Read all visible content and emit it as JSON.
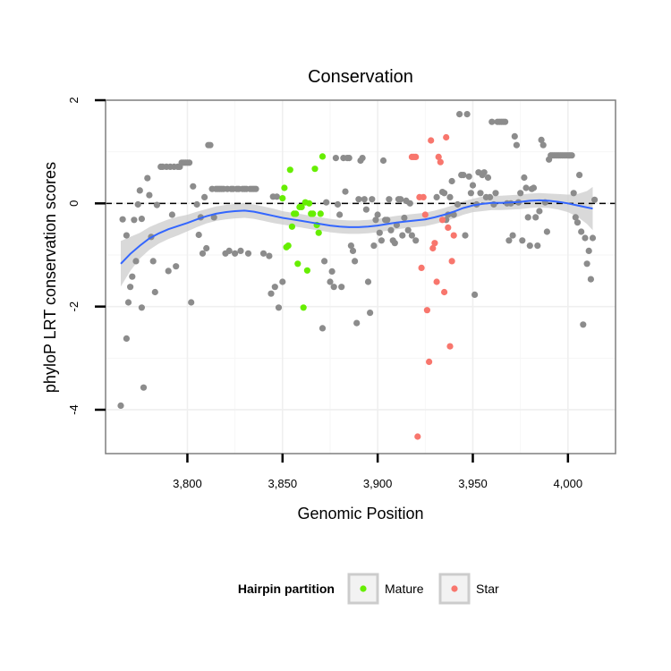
{
  "chart_data": {
    "type": "scatter",
    "title": "Conservation",
    "xlabel": "Genomic Position",
    "ylabel": "phyloP LRT conservation scores",
    "xlim": [
      3757,
      4025
    ],
    "ylim": [
      -4.85,
      2.0
    ],
    "x_ticks": [
      3800,
      3850,
      3900,
      3950,
      4000
    ],
    "x_tick_labels": [
      "3,800",
      "3,850",
      "3,900",
      "3,950",
      "4,000"
    ],
    "y_ticks": [
      -4,
      -2,
      0,
      2
    ],
    "y_tick_labels": [
      "-4",
      "-2",
      "0",
      "2"
    ],
    "grid": true,
    "reference_line": {
      "y": 0,
      "style": "dashed"
    },
    "legend": {
      "title": "Hairpin partition",
      "position": "bottom",
      "entries": [
        {
          "label": "Mature",
          "color": "#66ee00"
        },
        {
          "label": "Star",
          "color": "#f8766d"
        }
      ]
    },
    "colors": {
      "other": "#8c8c8c",
      "mature": "#66ee00",
      "star": "#f8766d",
      "smooth": "#3366ff",
      "band": "#cccccc"
    },
    "series": [
      {
        "name": "Other",
        "points": [
          [
            3765,
            -3.92
          ],
          [
            3766,
            -0.31
          ],
          [
            3768,
            -0.62
          ],
          [
            3768,
            -2.62
          ],
          [
            3769,
            -1.92
          ],
          [
            3770,
            -1.62
          ],
          [
            3771,
            -1.42
          ],
          [
            3772,
            -0.32
          ],
          [
            3773,
            -1.12
          ],
          [
            3774,
            -0.02
          ],
          [
            3775,
            0.25
          ],
          [
            3776,
            -0.3
          ],
          [
            3776,
            -2.02
          ],
          [
            3777,
            -3.57
          ],
          [
            3779,
            0.49
          ],
          [
            3780,
            0.16
          ],
          [
            3781,
            -0.65
          ],
          [
            3782,
            -1.12
          ],
          [
            3783,
            -1.72
          ],
          [
            3784,
            -0.03
          ],
          [
            3786,
            0.71
          ],
          [
            3787,
            0.71
          ],
          [
            3789,
            0.71
          ],
          [
            3790,
            -1.31
          ],
          [
            3791,
            0.71
          ],
          [
            3792,
            -0.22
          ],
          [
            3793,
            0.71
          ],
          [
            3794,
            -1.22
          ],
          [
            3795,
            0.71
          ],
          [
            3796,
            0.71
          ],
          [
            3797,
            0.79
          ],
          [
            3798,
            0.79
          ],
          [
            3799,
            0.79
          ],
          [
            3800,
            0.79
          ],
          [
            3801,
            0.79
          ],
          [
            3802,
            -1.92
          ],
          [
            3803,
            0.33
          ],
          [
            3805,
            -0.02
          ],
          [
            3806,
            -0.61
          ],
          [
            3807,
            -0.27
          ],
          [
            3808,
            -0.97
          ],
          [
            3809,
            0.12
          ],
          [
            3810,
            -0.87
          ],
          [
            3811,
            1.13
          ],
          [
            3812,
            1.13
          ],
          [
            3813,
            0.28
          ],
          [
            3814,
            -0.27
          ],
          [
            3815,
            0.28
          ],
          [
            3816,
            0.28
          ],
          [
            3817,
            0.28
          ],
          [
            3818,
            0.28
          ],
          [
            3819,
            0.28
          ],
          [
            3820,
            -0.97
          ],
          [
            3821,
            0.28
          ],
          [
            3822,
            -0.92
          ],
          [
            3823,
            0.28
          ],
          [
            3824,
            0.28
          ],
          [
            3825,
            -0.97
          ],
          [
            3826,
            0.28
          ],
          [
            3827,
            0.28
          ],
          [
            3828,
            -0.92
          ],
          [
            3829,
            0.28
          ],
          [
            3830,
            0.28
          ],
          [
            3831,
            0.28
          ],
          [
            3832,
            -0.97
          ],
          [
            3833,
            0.28
          ],
          [
            3834,
            0.28
          ],
          [
            3835,
            0.28
          ],
          [
            3836,
            0.28
          ],
          [
            3840,
            -0.97
          ],
          [
            3843,
            -1.02
          ],
          [
            3844,
            -1.75
          ],
          [
            3845,
            0.13
          ],
          [
            3846,
            -1.62
          ],
          [
            3847,
            0.13
          ],
          [
            3848,
            -2.02
          ],
          [
            3850,
            -1.52
          ],
          [
            3871,
            -2.42
          ],
          [
            3872,
            -1.12
          ],
          [
            3873,
            0.02
          ],
          [
            3875,
            -1.52
          ],
          [
            3876,
            -1.32
          ],
          [
            3877,
            -1.62
          ],
          [
            3878,
            0.88
          ],
          [
            3879,
            -0.02
          ],
          [
            3880,
            -0.22
          ],
          [
            3881,
            -1.62
          ],
          [
            3882,
            0.88
          ],
          [
            3883,
            0.23
          ],
          [
            3884,
            0.88
          ],
          [
            3885,
            0.88
          ],
          [
            3886,
            -0.82
          ],
          [
            3887,
            -0.92
          ],
          [
            3888,
            -1.12
          ],
          [
            3889,
            -2.32
          ],
          [
            3890,
            0.08
          ],
          [
            3891,
            0.83
          ],
          [
            3892,
            0.88
          ],
          [
            3893,
            0.08
          ],
          [
            3894,
            -0.12
          ],
          [
            3895,
            -1.52
          ],
          [
            3896,
            -2.12
          ],
          [
            3897,
            0.08
          ],
          [
            3898,
            -0.82
          ],
          [
            3899,
            -0.32
          ],
          [
            3900,
            -0.22
          ],
          [
            3901,
            -0.57
          ],
          [
            3902,
            -0.72
          ],
          [
            3903,
            0.83
          ],
          [
            3904,
            -0.32
          ],
          [
            3905,
            -0.32
          ],
          [
            3906,
            0.08
          ],
          [
            3907,
            -0.52
          ],
          [
            3908,
            -0.72
          ],
          [
            3909,
            -0.77
          ],
          [
            3910,
            -0.42
          ],
          [
            3911,
            0.08
          ],
          [
            3912,
            0.08
          ],
          [
            3913,
            -0.62
          ],
          [
            3914,
            -0.28
          ],
          [
            3915,
            0.05
          ],
          [
            3916,
            -0.52
          ],
          [
            3917,
            0.0
          ],
          [
            3918,
            -0.62
          ],
          [
            3920,
            -0.72
          ],
          [
            3931,
            0.12
          ],
          [
            3934,
            0.22
          ],
          [
            3935,
            0.2
          ],
          [
            3936,
            -0.32
          ],
          [
            3937,
            -0.22
          ],
          [
            3938,
            0.12
          ],
          [
            3939,
            0.43
          ],
          [
            3940,
            -0.22
          ],
          [
            3942,
            -0.02
          ],
          [
            3943,
            1.73
          ],
          [
            3944,
            0.55
          ],
          [
            3945,
            0.55
          ],
          [
            3946,
            -0.62
          ],
          [
            3947,
            1.73
          ],
          [
            3948,
            0.52
          ],
          [
            3949,
            0.2
          ],
          [
            3950,
            0.35
          ],
          [
            3951,
            -1.77
          ],
          [
            3952,
            -0.02
          ],
          [
            3953,
            0.6
          ],
          [
            3954,
            0.2
          ],
          [
            3955,
            0.55
          ],
          [
            3956,
            0.6
          ],
          [
            3957,
            0.12
          ],
          [
            3958,
            0.5
          ],
          [
            3959,
            0.12
          ],
          [
            3960,
            1.58
          ],
          [
            3961,
            -0.02
          ],
          [
            3962,
            0.2
          ],
          [
            3963,
            1.58
          ],
          [
            3964,
            1.58
          ],
          [
            3965,
            1.58
          ],
          [
            3966,
            1.58
          ],
          [
            3967,
            1.58
          ],
          [
            3968,
            0.0
          ],
          [
            3969,
            -0.72
          ],
          [
            3970,
            0.0
          ],
          [
            3971,
            -0.62
          ],
          [
            3972,
            1.3
          ],
          [
            3973,
            1.13
          ],
          [
            3974,
            0.02
          ],
          [
            3975,
            0.2
          ],
          [
            3976,
            -0.72
          ],
          [
            3977,
            0.5
          ],
          [
            3978,
            0.3
          ],
          [
            3979,
            -0.27
          ],
          [
            3980,
            -0.82
          ],
          [
            3981,
            0.28
          ],
          [
            3982,
            0.3
          ],
          [
            3983,
            -0.27
          ],
          [
            3984,
            -0.82
          ],
          [
            3985,
            -0.15
          ],
          [
            3986,
            1.23
          ],
          [
            3987,
            1.13
          ],
          [
            3988,
            0.02
          ],
          [
            3989,
            -0.55
          ],
          [
            3990,
            0.85
          ],
          [
            3991,
            0.93
          ],
          [
            3992,
            0.93
          ],
          [
            3993,
            0.93
          ],
          [
            3994,
            0.93
          ],
          [
            3995,
            0.93
          ],
          [
            3996,
            0.93
          ],
          [
            3997,
            0.93
          ],
          [
            3998,
            0.93
          ],
          [
            3999,
            0.93
          ],
          [
            4000,
            0.93
          ],
          [
            4001,
            0.93
          ],
          [
            4002,
            0.93
          ],
          [
            4003,
            0.2
          ],
          [
            4004,
            -0.27
          ],
          [
            4005,
            -0.37
          ],
          [
            4006,
            0.55
          ],
          [
            4007,
            -0.55
          ],
          [
            4008,
            -2.35
          ],
          [
            4009,
            -0.67
          ],
          [
            4010,
            -1.17
          ],
          [
            4011,
            -0.92
          ],
          [
            4012,
            -1.47
          ],
          [
            4013,
            -0.67
          ],
          [
            4014,
            0.07
          ]
        ]
      },
      {
        "name": "Mature",
        "points": [
          [
            3850,
            0.1
          ],
          [
            3851,
            0.3
          ],
          [
            3852,
            -0.85
          ],
          [
            3853,
            -0.82
          ],
          [
            3854,
            0.65
          ],
          [
            3855,
            -0.45
          ],
          [
            3856,
            -0.2
          ],
          [
            3857,
            -0.2
          ],
          [
            3858,
            -1.17
          ],
          [
            3859,
            -0.07
          ],
          [
            3860,
            -0.07
          ],
          [
            3861,
            -2.02
          ],
          [
            3862,
            0.02
          ],
          [
            3863,
            -1.3
          ],
          [
            3864,
            0.0
          ],
          [
            3865,
            -0.2
          ],
          [
            3866,
            -0.2
          ],
          [
            3867,
            0.67
          ],
          [
            3868,
            -0.42
          ],
          [
            3869,
            -0.57
          ],
          [
            3870,
            -0.2
          ],
          [
            3871,
            0.91
          ]
        ]
      },
      {
        "name": "Star",
        "points": [
          [
            3918,
            0.9
          ],
          [
            3919,
            0.9
          ],
          [
            3920,
            0.9
          ],
          [
            3921,
            -4.52
          ],
          [
            3922,
            0.12
          ],
          [
            3923,
            -1.25
          ],
          [
            3924,
            0.12
          ],
          [
            3925,
            -0.22
          ],
          [
            3926,
            -2.07
          ],
          [
            3927,
            -3.07
          ],
          [
            3928,
            1.22
          ],
          [
            3929,
            -0.87
          ],
          [
            3930,
            -0.77
          ],
          [
            3931,
            -1.52
          ],
          [
            3932,
            0.9
          ],
          [
            3933,
            0.8
          ],
          [
            3934,
            -0.32
          ],
          [
            3935,
            -1.72
          ],
          [
            3936,
            1.28
          ],
          [
            3937,
            -0.47
          ],
          [
            3938,
            -2.77
          ],
          [
            3939,
            -1.12
          ],
          [
            3940,
            -0.62
          ]
        ]
      }
    ],
    "smooth_line": {
      "x": [
        3765,
        3770,
        3775,
        3780,
        3785,
        3790,
        3795,
        3800,
        3805,
        3810,
        3815,
        3820,
        3825,
        3830,
        3835,
        3840,
        3845,
        3850,
        3855,
        3860,
        3865,
        3870,
        3875,
        3880,
        3885,
        3890,
        3895,
        3900,
        3905,
        3910,
        3915,
        3920,
        3925,
        3930,
        3935,
        3940,
        3945,
        3950,
        3955,
        3960,
        3965,
        3970,
        3975,
        3980,
        3985,
        3990,
        3995,
        4000,
        4005,
        4010,
        4013
      ],
      "y": [
        -1.17,
        -0.98,
        -0.82,
        -0.68,
        -0.58,
        -0.5,
        -0.44,
        -0.38,
        -0.31,
        -0.25,
        -0.2,
        -0.17,
        -0.15,
        -0.14,
        -0.16,
        -0.2,
        -0.24,
        -0.28,
        -0.31,
        -0.34,
        -0.37,
        -0.4,
        -0.43,
        -0.45,
        -0.46,
        -0.46,
        -0.45,
        -0.43,
        -0.4,
        -0.37,
        -0.35,
        -0.33,
        -0.31,
        -0.27,
        -0.22,
        -0.16,
        -0.09,
        -0.04,
        -0.01,
        0.01,
        0.01,
        0.02,
        0.03,
        0.05,
        0.06,
        0.05,
        0.03,
        0.0,
        -0.04,
        -0.08,
        -0.1
      ],
      "upper": [
        -0.73,
        -0.65,
        -0.57,
        -0.46,
        -0.38,
        -0.31,
        -0.26,
        -0.22,
        -0.16,
        -0.11,
        -0.06,
        -0.03,
        -0.01,
        -0.0,
        -0.02,
        -0.06,
        -0.1,
        -0.15,
        -0.18,
        -0.21,
        -0.24,
        -0.27,
        -0.3,
        -0.32,
        -0.33,
        -0.33,
        -0.32,
        -0.3,
        -0.27,
        -0.24,
        -0.22,
        -0.2,
        -0.18,
        -0.14,
        -0.09,
        -0.03,
        0.04,
        0.09,
        0.13,
        0.15,
        0.15,
        0.16,
        0.17,
        0.19,
        0.2,
        0.19,
        0.18,
        0.17,
        0.18,
        0.24,
        0.32
      ],
      "lower": [
        -1.61,
        -1.31,
        -1.07,
        -0.9,
        -0.78,
        -0.69,
        -0.62,
        -0.54,
        -0.46,
        -0.39,
        -0.34,
        -0.31,
        -0.29,
        -0.28,
        -0.3,
        -0.34,
        -0.38,
        -0.41,
        -0.44,
        -0.47,
        -0.5,
        -0.53,
        -0.56,
        -0.58,
        -0.59,
        -0.59,
        -0.58,
        -0.56,
        -0.53,
        -0.5,
        -0.48,
        -0.46,
        -0.44,
        -0.4,
        -0.35,
        -0.29,
        -0.22,
        -0.17,
        -0.15,
        -0.13,
        -0.13,
        -0.12,
        -0.11,
        -0.09,
        -0.08,
        -0.09,
        -0.12,
        -0.17,
        -0.26,
        -0.4,
        -0.52
      ]
    }
  }
}
